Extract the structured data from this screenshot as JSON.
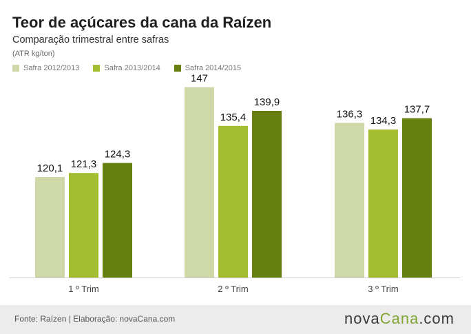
{
  "header": {
    "title": "Teor de açúcares da cana da Raízen",
    "subtitle": "Comparação trimestral entre safras",
    "unit": "(ATR kg/ton)"
  },
  "footer": {
    "source": "Fonte: Raízen | Elaboração: novaCana.com",
    "brand_part1": "nova",
    "brand_part2": "Cana",
    "brand_part3": ".com"
  },
  "colors": {
    "series": [
      "#cfd8a8",
      "#a3bd31",
      "#667f0e"
    ],
    "axis": "#cccccc",
    "label": "#111111",
    "tick": "#444444"
  },
  "chart_data": {
    "type": "bar",
    "title": "Teor de açúcares da cana da Raízen",
    "subtitle": "Comparação trimestral entre safras",
    "ylabel": "(ATR kg/ton)",
    "categories": [
      "1 º Trim",
      "2 º Trim",
      "3 º Trim"
    ],
    "series": [
      {
        "name": "Safra 2012/2013",
        "values": [
          120.1,
          147,
          136.3
        ],
        "labels": [
          "120,1",
          "147",
          "136,3"
        ]
      },
      {
        "name": "Safra 2013/2014",
        "values": [
          121.3,
          135.4,
          134.3
        ],
        "labels": [
          "121,3",
          "135,4",
          "134,3"
        ]
      },
      {
        "name": "Safra 2014/2015",
        "values": [
          124.3,
          139.9,
          137.7
        ],
        "labels": [
          "124,3",
          "139,9",
          "137,7"
        ]
      }
    ],
    "ylim": [
      90,
      150
    ],
    "grid": false,
    "legend": "top-left"
  }
}
